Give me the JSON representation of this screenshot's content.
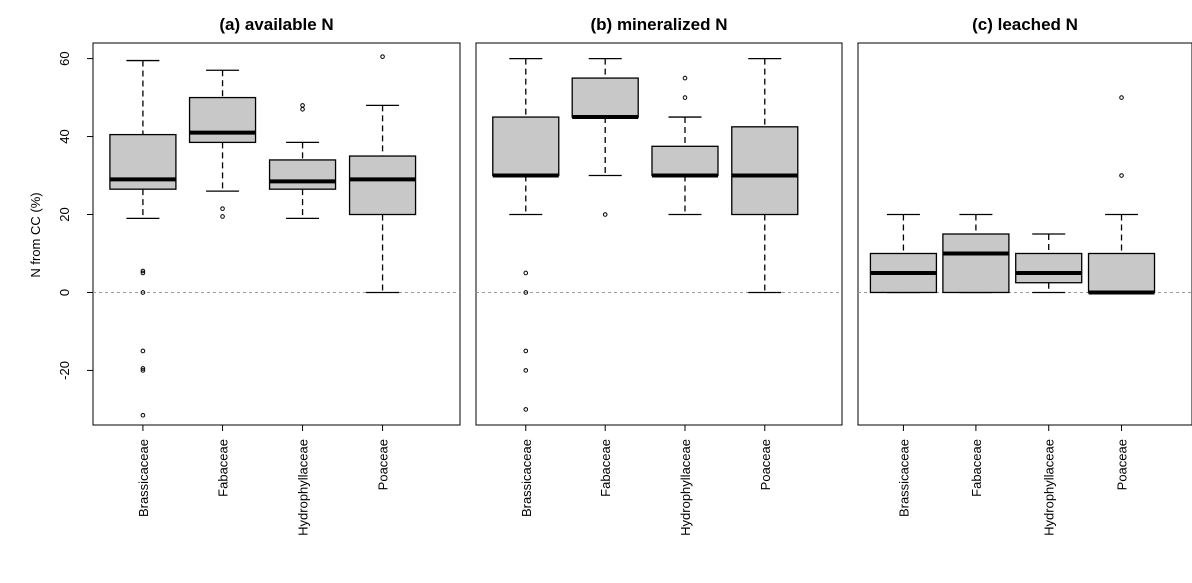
{
  "figure": {
    "ylabel": "N from CC (%)"
  },
  "chart_data": [
    {
      "type": "box",
      "title": "(a) available N",
      "ylabel": "N from CC (%)",
      "ylim": [
        -34,
        64
      ],
      "yticks": [
        -20,
        0,
        20,
        40,
        60
      ],
      "reference_line": 0,
      "categories": [
        "Brassicaceae",
        "Fabaceae",
        "Hydrophyllaceae",
        "Poaceae"
      ],
      "boxes": [
        {
          "whisker_low": 19,
          "q1": 26.5,
          "median": 29,
          "q3": 40.5,
          "whisker_high": 59.5,
          "outliers": [
            5,
            5.5,
            0,
            -15,
            -19.5,
            -20,
            -31.5
          ]
        },
        {
          "whisker_low": 26,
          "q1": 38.5,
          "median": 41,
          "q3": 50,
          "whisker_high": 57,
          "outliers": [
            21.5,
            19.5
          ]
        },
        {
          "whisker_low": 19,
          "q1": 26.5,
          "median": 28.5,
          "q3": 34,
          "whisker_high": 38.5,
          "outliers": [
            47,
            48
          ]
        },
        {
          "whisker_low": 0,
          "q1": 20,
          "median": 29,
          "q3": 35,
          "whisker_high": 48,
          "outliers": [
            60.5
          ]
        }
      ]
    },
    {
      "type": "box",
      "title": "(b) mineralized N",
      "ylim": [
        -34,
        64
      ],
      "reference_line": 0,
      "categories": [
        "Brassicaceae",
        "Fabaceae",
        "Hydrophyllaceae",
        "Poaceae"
      ],
      "boxes": [
        {
          "whisker_low": 20,
          "q1": 30,
          "median": 30,
          "q3": 45,
          "whisker_high": 60,
          "outliers": [
            5,
            0,
            -15,
            -20,
            -30
          ]
        },
        {
          "whisker_low": 30,
          "q1": 45,
          "median": 45,
          "q3": 55,
          "whisker_high": 60,
          "outliers": [
            20
          ]
        },
        {
          "whisker_low": 20,
          "q1": 30,
          "median": 30,
          "q3": 37.5,
          "whisker_high": 45,
          "outliers": [
            50,
            55
          ]
        },
        {
          "whisker_low": 0,
          "q1": 20,
          "median": 30,
          "q3": 42.5,
          "whisker_high": 60,
          "outliers": []
        }
      ]
    },
    {
      "type": "box",
      "title": "(c) leached N",
      "ylim": [
        -34,
        64
      ],
      "reference_line": 0,
      "categories": [
        "Brassicaceae",
        "Fabaceae",
        "Hydrophyllaceae",
        "Poaceae"
      ],
      "boxes": [
        {
          "whisker_low": 0,
          "q1": 0,
          "median": 5,
          "q3": 10,
          "whisker_high": 20,
          "outliers": []
        },
        {
          "whisker_low": 0,
          "q1": 0,
          "median": 10,
          "q3": 15,
          "whisker_high": 20,
          "outliers": []
        },
        {
          "whisker_low": 0,
          "q1": 2.5,
          "median": 5,
          "q3": 10,
          "whisker_high": 15,
          "outliers": []
        },
        {
          "whisker_low": 0,
          "q1": 0,
          "median": 0,
          "q3": 10,
          "whisker_high": 20,
          "outliers": [
            30,
            50
          ]
        }
      ]
    }
  ]
}
